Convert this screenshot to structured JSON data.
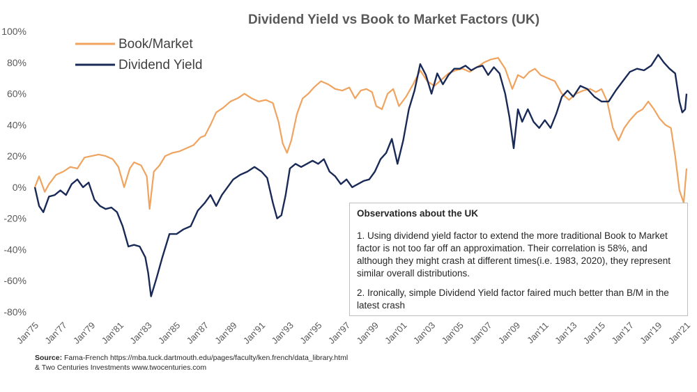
{
  "chart_data": {
    "type": "line",
    "title": "Dividend Yield vs Book to Market Factors (UK)",
    "xlabel": "",
    "ylabel": "",
    "ylim": [
      -0.8,
      1.0
    ],
    "xlim": [
      1975,
      2021
    ],
    "y_ticks": [
      "100%",
      "80%",
      "60%",
      "40%",
      "20%",
      "0%",
      "-20%",
      "-40%",
      "-60%",
      "-80%"
    ],
    "x_ticks": [
      "Jan'75",
      "Jan'77",
      "Jan'79",
      "Jan'81",
      "Jan'83",
      "Jan'85",
      "Jan'87",
      "Jan'89",
      "Jan'91",
      "Jan'93",
      "Jan'95",
      "Jan'97",
      "Jan'99",
      "Jan'01",
      "Jan'03",
      "Jan'05",
      "Jan'07",
      "Jan'09",
      "Jan'11",
      "Jan'13",
      "Jan'15",
      "Jan'17",
      "Jan'19",
      "Jan'21"
    ],
    "legend": [
      "Book/Market",
      "Dividend Yield"
    ],
    "colors": {
      "book_market": "#f0a35e",
      "dividend_yield": "#1a2a57"
    },
    "series": [
      {
        "name": "Book/Market",
        "x": [
          1975.0,
          1975.3,
          1975.7,
          1976.0,
          1976.5,
          1977.0,
          1977.5,
          1978.0,
          1978.5,
          1979.0,
          1979.5,
          1980.0,
          1980.5,
          1980.9,
          1981.3,
          1981.7,
          1982.0,
          1982.5,
          1982.9,
          1983.1,
          1983.4,
          1983.8,
          1984.2,
          1984.7,
          1985.2,
          1985.7,
          1986.2,
          1986.7,
          1987.0,
          1987.4,
          1987.8,
          1988.3,
          1988.8,
          1989.3,
          1989.8,
          1990.3,
          1990.8,
          1991.3,
          1991.8,
          1992.2,
          1992.5,
          1992.8,
          1993.1,
          1993.5,
          1993.9,
          1994.3,
          1994.7,
          1995.2,
          1995.7,
          1996.2,
          1996.7,
          1997.2,
          1997.6,
          1998.0,
          1998.4,
          1998.8,
          1999.1,
          1999.5,
          1999.9,
          2000.3,
          2000.7,
          2001.2,
          2001.7,
          2002.2,
          2002.7,
          2003.2,
          2003.7,
          2004.2,
          2004.7,
          2005.2,
          2005.7,
          2006.2,
          2006.7,
          2007.2,
          2007.7,
          2008.2,
          2008.7,
          2009.1,
          2009.5,
          2009.9,
          2010.3,
          2010.7,
          2011.2,
          2011.7,
          2012.2,
          2012.7,
          2013.2,
          2013.7,
          2014.2,
          2014.6,
          2015.0,
          2015.4,
          2015.8,
          2016.2,
          2016.6,
          2017.0,
          2017.5,
          2017.9,
          2018.3,
          2018.7,
          2019.1,
          2019.5,
          2019.9,
          2020.2,
          2020.5,
          2020.8,
          2021.0
        ],
        "y": [
          0.0,
          0.07,
          -0.03,
          0.02,
          0.08,
          0.1,
          0.13,
          0.12,
          0.19,
          0.2,
          0.21,
          0.2,
          0.18,
          0.13,
          0.0,
          0.12,
          0.16,
          0.14,
          0.07,
          -0.14,
          0.1,
          0.14,
          0.2,
          0.22,
          0.23,
          0.25,
          0.27,
          0.32,
          0.33,
          0.4,
          0.48,
          0.51,
          0.55,
          0.57,
          0.6,
          0.57,
          0.55,
          0.56,
          0.54,
          0.42,
          0.28,
          0.22,
          0.3,
          0.47,
          0.57,
          0.6,
          0.64,
          0.68,
          0.66,
          0.63,
          0.62,
          0.64,
          0.57,
          0.62,
          0.63,
          0.61,
          0.52,
          0.5,
          0.6,
          0.63,
          0.52,
          0.58,
          0.66,
          0.75,
          0.68,
          0.65,
          0.69,
          0.73,
          0.75,
          0.76,
          0.74,
          0.77,
          0.8,
          0.82,
          0.83,
          0.76,
          0.63,
          0.72,
          0.7,
          0.74,
          0.76,
          0.72,
          0.7,
          0.68,
          0.6,
          0.56,
          0.6,
          0.62,
          0.63,
          0.61,
          0.63,
          0.55,
          0.38,
          0.3,
          0.38,
          0.43,
          0.48,
          0.5,
          0.55,
          0.5,
          0.44,
          0.4,
          0.38,
          0.2,
          -0.02,
          -0.1,
          0.12
        ]
      },
      {
        "name": "Dividend Yield",
        "x": [
          1975.0,
          1975.3,
          1975.6,
          1976.0,
          1976.4,
          1976.8,
          1977.2,
          1977.6,
          1978.0,
          1978.4,
          1978.8,
          1979.2,
          1979.6,
          1980.0,
          1980.4,
          1980.8,
          1981.2,
          1981.6,
          1982.0,
          1982.4,
          1982.8,
          1983.0,
          1983.2,
          1983.6,
          1984.0,
          1984.5,
          1985.0,
          1985.5,
          1986.0,
          1986.5,
          1987.0,
          1987.4,
          1987.8,
          1988.2,
          1988.6,
          1989.0,
          1989.5,
          1990.0,
          1990.5,
          1991.0,
          1991.4,
          1991.8,
          1992.1,
          1992.4,
          1992.7,
          1993.0,
          1993.4,
          1993.8,
          1994.2,
          1994.6,
          1995.0,
          1995.4,
          1995.8,
          1996.2,
          1996.6,
          1997.0,
          1997.4,
          1997.8,
          1998.2,
          1998.6,
          1999.0,
          1999.4,
          1999.8,
          2000.2,
          2000.6,
          2001.0,
          2001.4,
          2001.8,
          2002.2,
          2002.6,
          2003.0,
          2003.4,
          2003.8,
          2004.2,
          2004.6,
          2005.0,
          2005.4,
          2005.8,
          2006.2,
          2006.6,
          2007.0,
          2007.4,
          2007.8,
          2008.2,
          2008.5,
          2008.8,
          2009.1,
          2009.4,
          2009.8,
          2010.2,
          2010.6,
          2011.0,
          2011.4,
          2011.8,
          2012.2,
          2012.6,
          2013.0,
          2013.5,
          2014.0,
          2014.5,
          2015.0,
          2015.5,
          2016.0,
          2016.5,
          2017.0,
          2017.5,
          2018.0,
          2018.5,
          2019.0,
          2019.4,
          2019.8,
          2020.2,
          2020.5,
          2020.7,
          2020.9,
          2021.0
        ],
        "y": [
          0.0,
          -0.12,
          -0.16,
          -0.06,
          -0.05,
          -0.02,
          -0.05,
          0.02,
          0.05,
          0.0,
          0.03,
          -0.08,
          -0.12,
          -0.14,
          -0.13,
          -0.16,
          -0.25,
          -0.38,
          -0.37,
          -0.38,
          -0.45,
          -0.55,
          -0.7,
          -0.58,
          -0.45,
          -0.3,
          -0.3,
          -0.27,
          -0.25,
          -0.15,
          -0.1,
          -0.05,
          -0.12,
          -0.05,
          0.0,
          0.05,
          0.08,
          0.1,
          0.13,
          0.1,
          0.06,
          -0.1,
          -0.2,
          -0.18,
          -0.05,
          0.12,
          0.15,
          0.13,
          0.15,
          0.17,
          0.15,
          0.18,
          0.1,
          0.07,
          0.02,
          0.05,
          0.0,
          0.02,
          0.04,
          0.05,
          0.1,
          0.18,
          0.22,
          0.31,
          0.15,
          0.3,
          0.5,
          0.62,
          0.79,
          0.72,
          0.6,
          0.73,
          0.66,
          0.72,
          0.76,
          0.76,
          0.78,
          0.75,
          0.77,
          0.78,
          0.72,
          0.77,
          0.73,
          0.6,
          0.45,
          0.25,
          0.5,
          0.42,
          0.5,
          0.42,
          0.38,
          0.43,
          0.38,
          0.47,
          0.58,
          0.62,
          0.58,
          0.65,
          0.63,
          0.58,
          0.55,
          0.55,
          0.62,
          0.68,
          0.74,
          0.76,
          0.75,
          0.78,
          0.85,
          0.8,
          0.76,
          0.73,
          0.55,
          0.48,
          0.5,
          0.6
        ]
      }
    ]
  },
  "observations": {
    "heading": "Observations about the UK",
    "point1": "1. Using dividend yield factor to extend the more traditional Book to Market factor is not too far off an approximation. Their correlation is 58%, and although they might crash at different times(i.e. 1983, 2020), they represent similar overall distributions.",
    "point2": "2. Ironically, simple Dividend Yield factor faired much better than B/M in the latest crash"
  },
  "source": {
    "label": "Source:",
    "line1": "Fama-French https://mba.tuck.dartmouth.edu/pages/faculty/ken.french/data_library.html",
    "line2": "& Two Centuries Investments www.twocenturies.com"
  }
}
